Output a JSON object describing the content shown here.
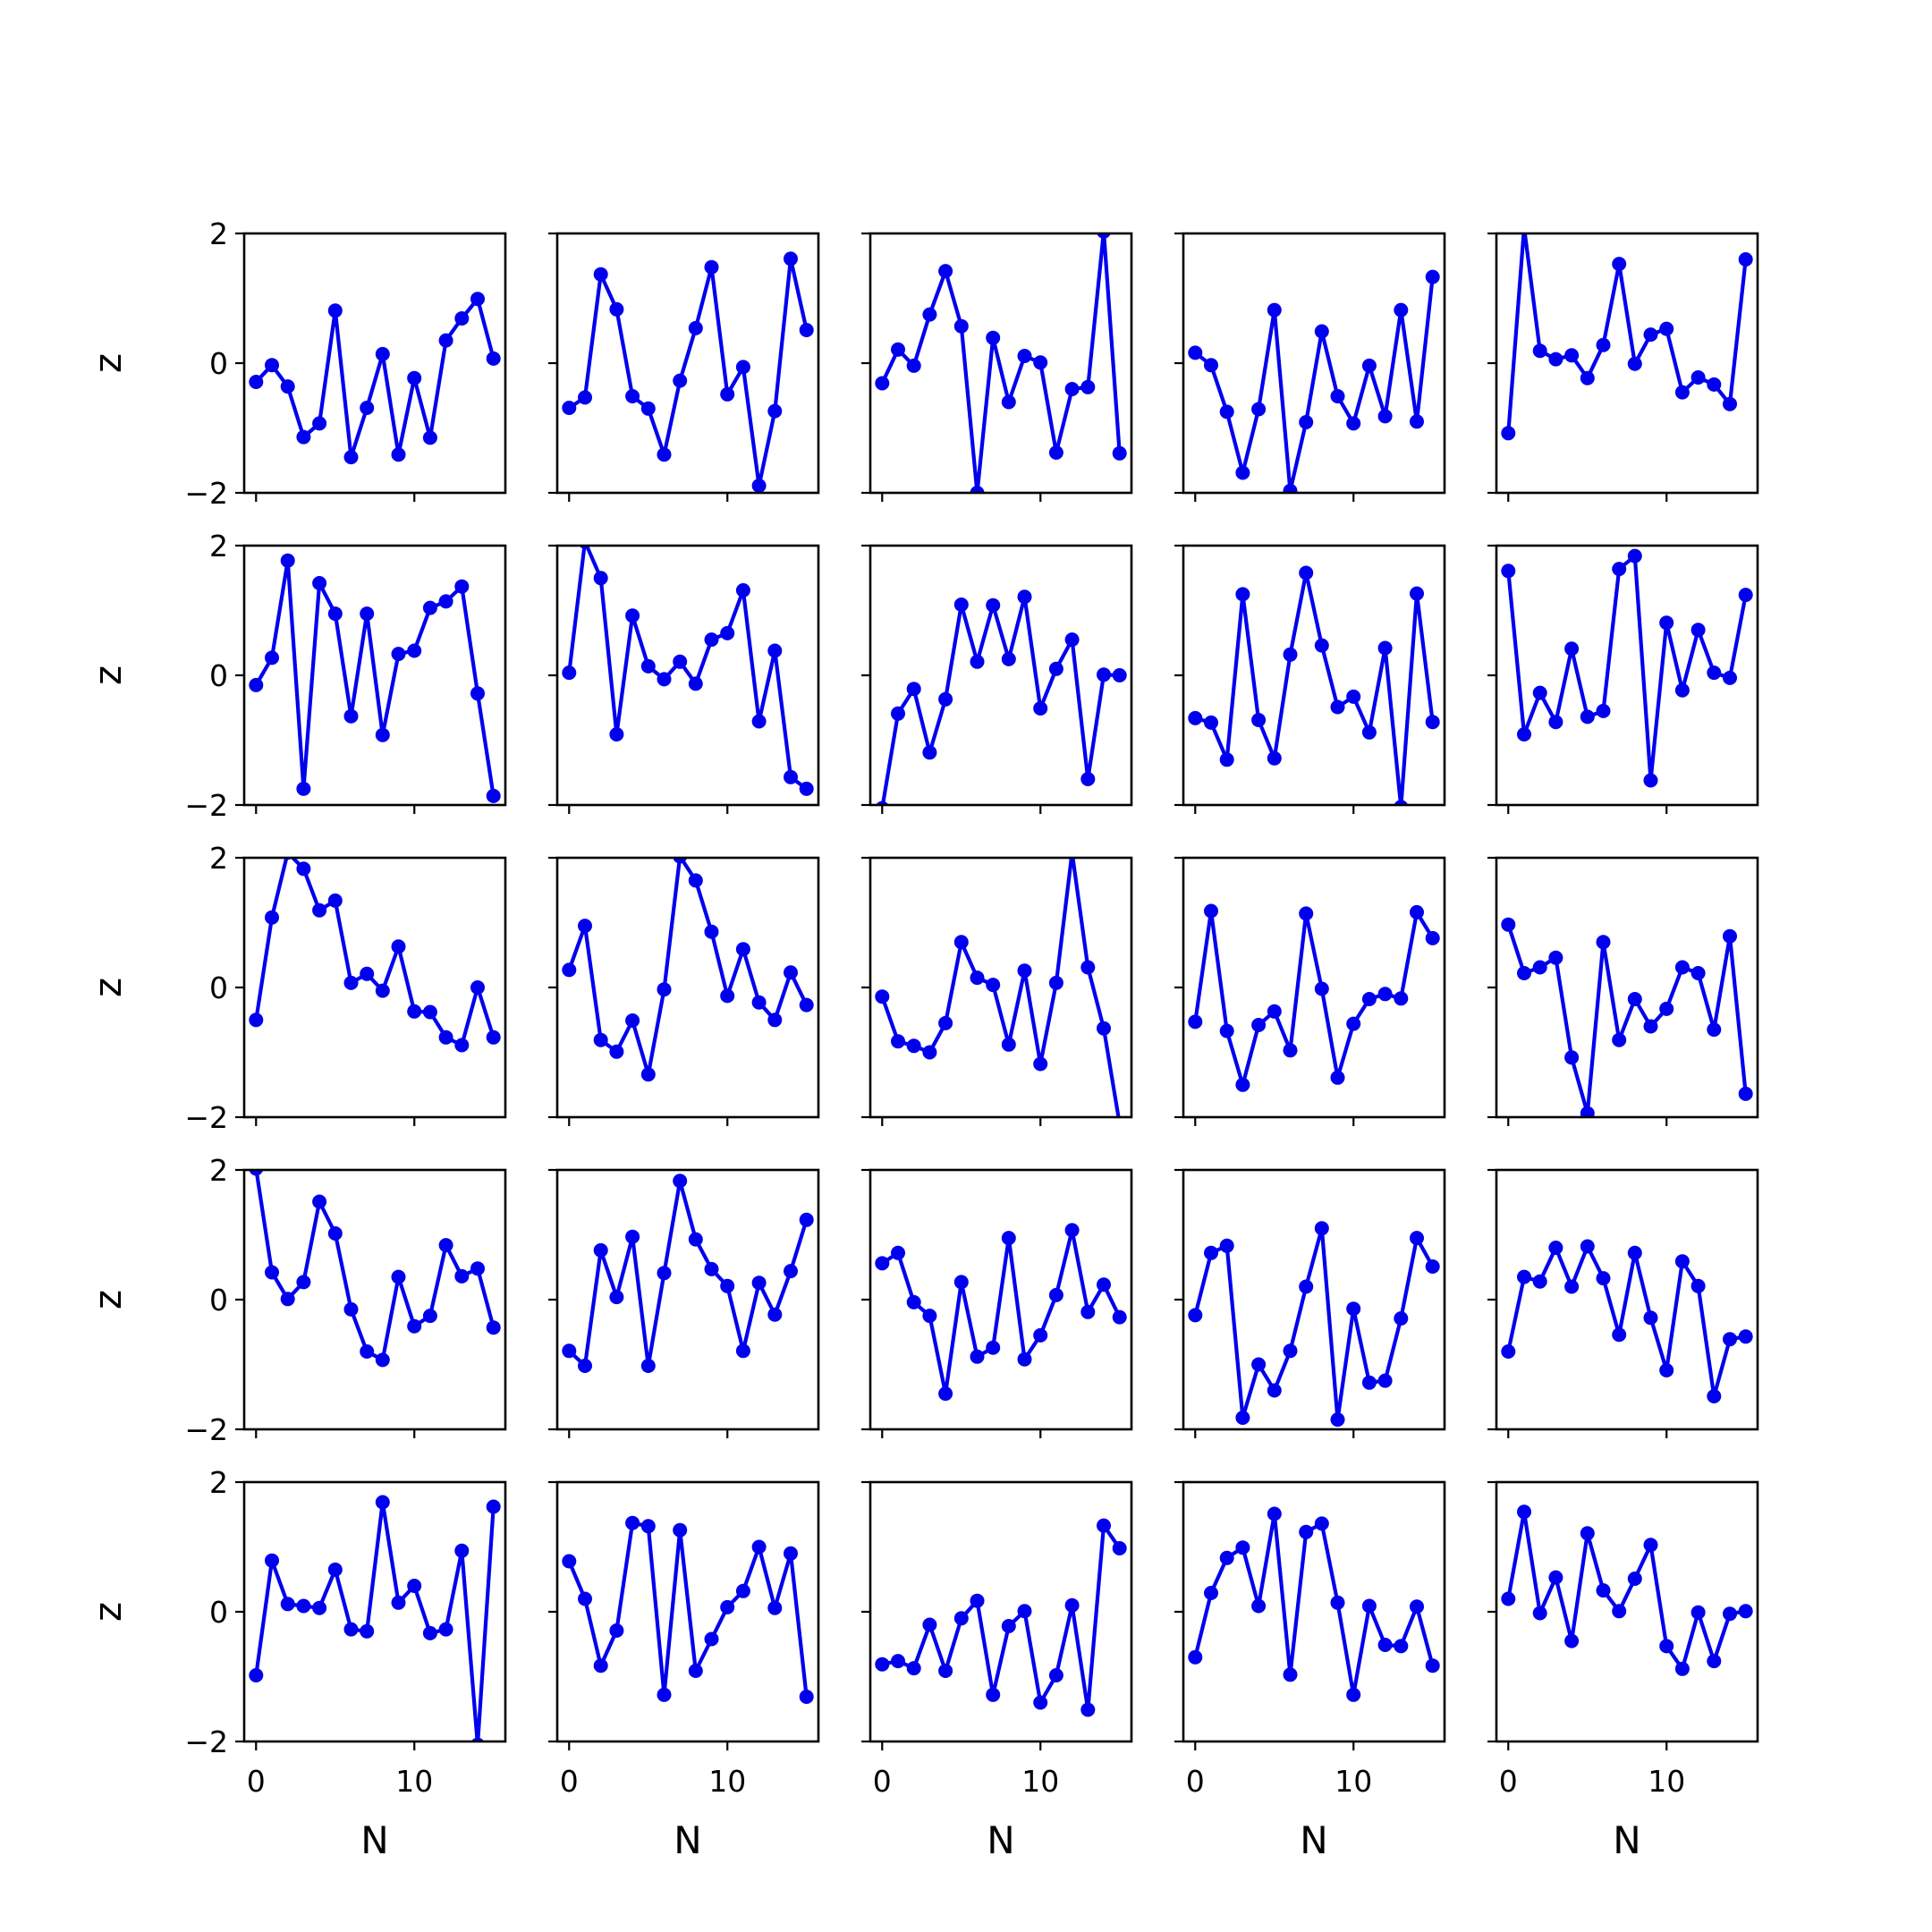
{
  "chart_data": {
    "type": "line",
    "layout": "5x5 grid of small multiples, shared x and y axes",
    "xlabel": "N",
    "ylabel": "z",
    "xlim": [
      -0.75,
      15.75
    ],
    "ylim": [
      -2,
      2
    ],
    "xticks": [
      0,
      10
    ],
    "yticks": [
      -2,
      0,
      2
    ],
    "ytick_labels": [
      "−2",
      "0",
      "2"
    ],
    "xtick_labels": [
      "0",
      "10"
    ],
    "line_color": "#0000ee",
    "marker": "circle",
    "x": [
      0,
      1,
      2,
      3,
      4,
      5,
      6,
      7,
      8,
      9,
      10,
      11,
      12,
      13,
      14,
      15
    ],
    "panels": [
      [
        {
          "values": [
            -0.29,
            -0.03,
            -0.36,
            -1.14,
            -0.93,
            0.81,
            -1.45,
            -0.69,
            0.14,
            -1.41,
            -0.23,
            -1.15,
            0.35,
            0.69,
            0.99,
            0.07
          ]
        },
        {
          "values": [
            -0.69,
            -0.53,
            1.37,
            0.83,
            -0.51,
            -0.7,
            -1.41,
            -0.27,
            0.54,
            1.48,
            -0.48,
            -0.06,
            -1.89,
            -0.74,
            1.61,
            0.51
          ]
        },
        {
          "values": [
            -0.31,
            0.21,
            -0.04,
            0.75,
            1.42,
            0.57,
            -2.0,
            0.39,
            -0.6,
            0.11,
            0.01,
            -1.38,
            -0.4,
            -0.37,
            2.03,
            -1.39
          ]
        },
        {
          "values": [
            0.16,
            -0.03,
            -0.75,
            -1.69,
            -0.71,
            0.82,
            -1.97,
            -0.91,
            0.49,
            -0.51,
            -0.93,
            -0.04,
            -0.82,
            0.82,
            -0.9,
            1.33
          ]
        },
        {
          "values": [
            -1.08,
            2.09,
            0.19,
            0.06,
            0.12,
            -0.23,
            0.28,
            1.53,
            -0.01,
            0.44,
            0.53,
            -0.45,
            -0.22,
            -0.33,
            -0.63,
            1.6
          ]
        }
      ],
      [
        {
          "values": [
            -0.15,
            0.27,
            1.77,
            -1.75,
            1.42,
            0.95,
            -0.63,
            0.95,
            -0.92,
            0.33,
            0.38,
            1.04,
            1.14,
            1.37,
            -0.28,
            -1.86
          ]
        },
        {
          "values": [
            0.04,
            2.06,
            1.5,
            -0.91,
            0.92,
            0.14,
            -0.06,
            0.21,
            -0.13,
            0.55,
            0.65,
            1.31,
            -0.71,
            0.38,
            -1.57,
            -1.75
          ]
        },
        {
          "values": [
            -2.05,
            -0.59,
            -0.21,
            -1.19,
            -0.37,
            1.09,
            0.21,
            1.08,
            0.25,
            1.21,
            -0.51,
            0.1,
            0.55,
            -1.6,
            0.01,
            0.0
          ]
        },
        {
          "values": [
            -0.66,
            -0.73,
            -1.3,
            1.25,
            -0.69,
            -1.28,
            0.32,
            1.58,
            0.46,
            -0.49,
            -0.33,
            -0.88,
            0.42,
            -2.03,
            1.26,
            -0.72
          ]
        },
        {
          "values": [
            1.61,
            -0.91,
            -0.27,
            -0.72,
            0.41,
            -0.64,
            -0.55,
            1.64,
            1.84,
            -1.62,
            0.81,
            -0.23,
            0.7,
            0.04,
            -0.04,
            1.24
          ]
        }
      ],
      [
        {
          "values": [
            -0.5,
            1.08,
            2.08,
            1.83,
            1.19,
            1.34,
            0.07,
            0.21,
            -0.05,
            0.63,
            -0.37,
            -0.38,
            -0.77,
            -0.89,
            0.0,
            -0.77
          ]
        },
        {
          "values": [
            0.27,
            0.95,
            -0.81,
            -0.99,
            -0.51,
            -1.34,
            -0.03,
            2.02,
            1.65,
            0.86,
            -0.13,
            0.59,
            -0.23,
            -0.5,
            0.23,
            -0.27
          ]
        },
        {
          "values": [
            -0.14,
            -0.83,
            -0.9,
            -1.0,
            -0.55,
            0.7,
            0.15,
            0.04,
            -0.88,
            0.26,
            -1.18,
            0.07,
            2.08,
            0.31,
            -0.63,
            -2.1
          ]
        },
        {
          "values": [
            -0.53,
            1.18,
            -0.67,
            -1.5,
            -0.58,
            -0.37,
            -0.97,
            1.14,
            -0.02,
            -1.39,
            -0.56,
            -0.18,
            -0.1,
            -0.17,
            1.16,
            0.76
          ]
        },
        {
          "values": [
            0.97,
            0.22,
            0.31,
            0.46,
            -1.08,
            -1.94,
            0.7,
            -0.81,
            -0.18,
            -0.6,
            -0.33,
            0.31,
            0.22,
            -0.65,
            0.79,
            -1.64
          ]
        }
      ],
      [
        {
          "values": [
            2.02,
            0.42,
            0.01,
            0.27,
            1.51,
            1.02,
            -0.15,
            -0.8,
            -0.93,
            0.35,
            -0.41,
            -0.25,
            0.84,
            0.36,
            0.48,
            -0.43
          ]
        },
        {
          "values": [
            -0.79,
            -1.02,
            0.76,
            0.04,
            0.97,
            -1.02,
            0.41,
            1.83,
            0.93,
            0.47,
            0.21,
            -0.79,
            0.26,
            -0.23,
            0.44,
            1.23
          ]
        },
        {
          "values": [
            0.56,
            0.72,
            -0.04,
            -0.25,
            -1.45,
            0.27,
            -0.88,
            -0.74,
            0.95,
            -0.92,
            -0.55,
            0.07,
            1.07,
            -0.19,
            0.23,
            -0.27
          ]
        },
        {
          "values": [
            -0.24,
            0.72,
            0.83,
            -1.82,
            -1.0,
            -1.4,
            -0.79,
            0.2,
            1.1,
            -1.85,
            -0.14,
            -1.28,
            -1.25,
            -0.29,
            0.95,
            0.51
          ]
        },
        {
          "values": [
            -0.8,
            0.35,
            0.28,
            0.8,
            0.2,
            0.82,
            0.33,
            -0.54,
            0.72,
            -0.28,
            -1.09,
            0.59,
            0.21,
            -1.49,
            -0.61,
            -0.57
          ]
        }
      ],
      [
        {
          "values": [
            -0.98,
            0.79,
            0.12,
            0.09,
            0.06,
            0.65,
            -0.27,
            -0.3,
            1.69,
            0.14,
            0.4,
            -0.33,
            -0.27,
            0.94,
            -2.05,
            1.62
          ]
        },
        {
          "values": [
            0.78,
            0.2,
            -0.83,
            -0.29,
            1.37,
            1.32,
            -1.28,
            1.26,
            -0.91,
            -0.42,
            0.07,
            0.32,
            1.0,
            0.06,
            0.9,
            -1.31
          ]
        },
        {
          "values": [
            -0.81,
            -0.76,
            -0.87,
            -0.2,
            -0.91,
            -0.1,
            0.17,
            -1.28,
            -0.22,
            0.01,
            -1.4,
            -0.98,
            0.1,
            -1.51,
            1.33,
            0.98
          ]
        },
        {
          "values": [
            -0.7,
            0.29,
            0.83,
            0.99,
            0.09,
            1.51,
            -0.97,
            1.23,
            1.36,
            0.14,
            -1.28,
            0.09,
            -0.51,
            -0.53,
            0.08,
            -0.83
          ]
        },
        {
          "values": [
            0.2,
            1.54,
            -0.02,
            0.53,
            -0.45,
            1.21,
            0.33,
            0.01,
            0.51,
            1.03,
            -0.53,
            -0.88,
            -0.01,
            -0.76,
            -0.03,
            0.01
          ]
        }
      ]
    ]
  }
}
